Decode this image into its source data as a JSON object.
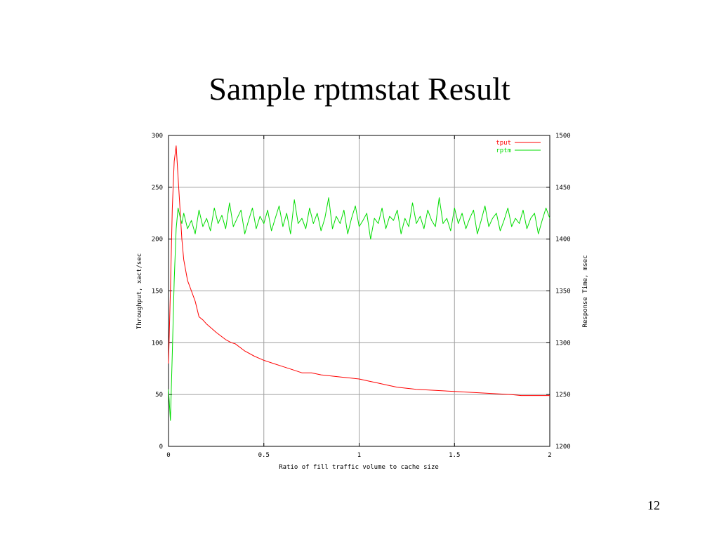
{
  "slide": {
    "title": "Sample rptmstat Result",
    "page_number": "12"
  },
  "chart_data": {
    "type": "line",
    "xlabel": "Ratio of fill traffic volume to cache size",
    "ylabel_left": "Throughput, xact/sec",
    "ylabel_right": "Response Time, msec",
    "xlim": [
      0,
      2
    ],
    "ylim_left": [
      0,
      300
    ],
    "ylim_right": [
      1200,
      1500
    ],
    "x_ticks": [
      "0",
      "0.5",
      "1",
      "1.5",
      "2"
    ],
    "y_ticks_left": [
      "0",
      "50",
      "100",
      "150",
      "200",
      "250",
      "300"
    ],
    "y_ticks_right": [
      "1200",
      "1250",
      "1300",
      "1350",
      "1400",
      "1450",
      "1500"
    ],
    "grid": true,
    "legend_position": "top-right",
    "series": [
      {
        "name": "tput",
        "axis": "left",
        "color": "#ff0000",
        "x": [
          0.0,
          0.01,
          0.02,
          0.03,
          0.04,
          0.05,
          0.06,
          0.07,
          0.08,
          0.09,
          0.1,
          0.12,
          0.14,
          0.16,
          0.18,
          0.2,
          0.25,
          0.3,
          0.33,
          0.35,
          0.4,
          0.45,
          0.5,
          0.55,
          0.6,
          0.65,
          0.7,
          0.75,
          0.8,
          0.85,
          0.9,
          0.95,
          1.0,
          1.05,
          1.1,
          1.15,
          1.2,
          1.3,
          1.4,
          1.5,
          1.6,
          1.7,
          1.8,
          1.85,
          1.9,
          1.95,
          2.0
        ],
        "y": [
          80,
          150,
          230,
          275,
          290,
          260,
          230,
          200,
          180,
          170,
          160,
          150,
          140,
          125,
          122,
          118,
          110,
          103,
          100,
          99,
          92,
          87,
          83,
          80,
          77,
          74,
          71,
          71,
          69,
          68,
          67,
          66,
          65,
          63,
          61,
          59,
          57,
          55,
          54,
          53,
          52,
          51,
          50,
          49,
          49,
          49,
          49
        ]
      },
      {
        "name": "rptm",
        "axis": "right",
        "color": "#00dd00",
        "x": [
          0.0,
          0.01,
          0.02,
          0.03,
          0.04,
          0.05,
          0.06,
          0.07,
          0.08,
          0.1,
          0.12,
          0.14,
          0.16,
          0.18,
          0.2,
          0.22,
          0.24,
          0.26,
          0.28,
          0.3,
          0.32,
          0.34,
          0.36,
          0.38,
          0.4,
          0.42,
          0.44,
          0.46,
          0.48,
          0.5,
          0.52,
          0.54,
          0.56,
          0.58,
          0.6,
          0.62,
          0.64,
          0.66,
          0.68,
          0.7,
          0.72,
          0.74,
          0.76,
          0.78,
          0.8,
          0.82,
          0.84,
          0.86,
          0.88,
          0.9,
          0.92,
          0.94,
          0.96,
          0.98,
          1.0,
          1.02,
          1.04,
          1.06,
          1.08,
          1.1,
          1.12,
          1.14,
          1.16,
          1.18,
          1.2,
          1.22,
          1.24,
          1.26,
          1.28,
          1.3,
          1.32,
          1.34,
          1.36,
          1.38,
          1.4,
          1.42,
          1.44,
          1.46,
          1.48,
          1.5,
          1.52,
          1.54,
          1.56,
          1.58,
          1.6,
          1.62,
          1.64,
          1.66,
          1.68,
          1.7,
          1.72,
          1.74,
          1.76,
          1.78,
          1.8,
          1.82,
          1.84,
          1.86,
          1.88,
          1.9,
          1.92,
          1.94,
          1.96,
          1.98,
          2.0
        ],
        "y": [
          1255,
          1225,
          1290,
          1360,
          1410,
          1430,
          1422,
          1415,
          1425,
          1410,
          1418,
          1405,
          1428,
          1412,
          1420,
          1408,
          1430,
          1415,
          1423,
          1410,
          1435,
          1412,
          1420,
          1428,
          1405,
          1418,
          1430,
          1410,
          1422,
          1415,
          1428,
          1408,
          1420,
          1432,
          1412,
          1425,
          1405,
          1438,
          1415,
          1420,
          1410,
          1430,
          1415,
          1425,
          1408,
          1420,
          1440,
          1410,
          1422,
          1415,
          1428,
          1405,
          1420,
          1432,
          1412,
          1418,
          1425,
          1400,
          1420,
          1415,
          1430,
          1410,
          1422,
          1418,
          1428,
          1405,
          1420,
          1412,
          1435,
          1415,
          1422,
          1410,
          1428,
          1418,
          1412,
          1440,
          1415,
          1420,
          1408,
          1430,
          1415,
          1425,
          1410,
          1420,
          1428,
          1405,
          1418,
          1432,
          1412,
          1420,
          1425,
          1408,
          1418,
          1430,
          1412,
          1420,
          1415,
          1428,
          1410,
          1420,
          1425,
          1405,
          1418,
          1430,
          1420
        ]
      }
    ]
  }
}
